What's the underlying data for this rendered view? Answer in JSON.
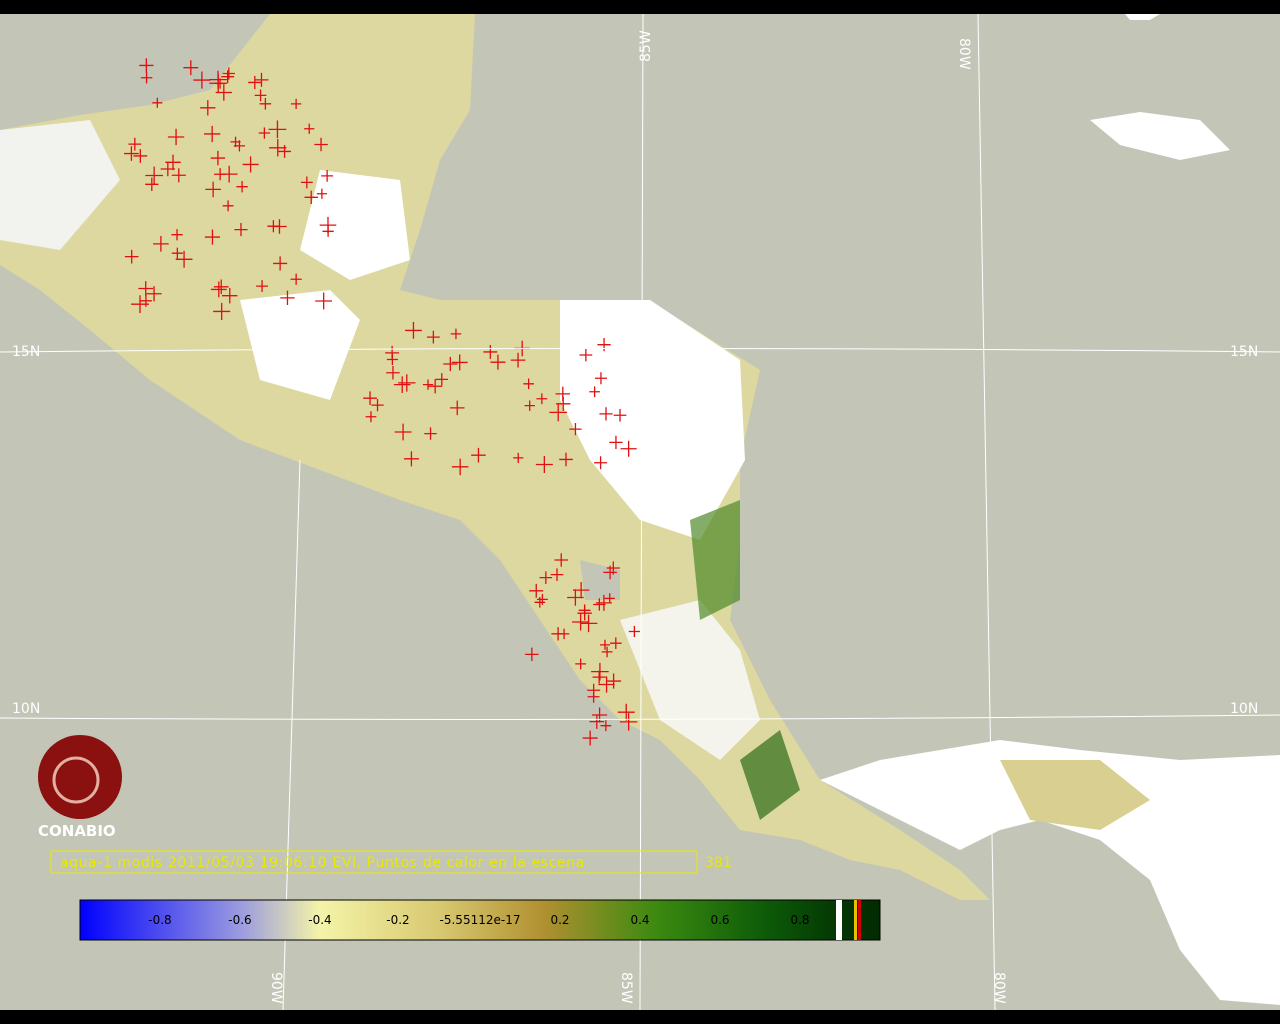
{
  "grid_labels": {
    "top": [
      "85W",
      "80W"
    ],
    "bottom": [
      "90W",
      "85W",
      "80W"
    ],
    "left": [
      "15N",
      "10N"
    ],
    "right": [
      "15N",
      "10N"
    ]
  },
  "logo": {
    "name": "CONABIO"
  },
  "caption": {
    "text": "aqua-1 modis 2011/05/03 19:06:10 EVI, Puntos de calor en la escena",
    "count": "381"
  },
  "colorbar": {
    "ticks": [
      "-0.8",
      "-0.6",
      "-0.4",
      "-0.2",
      "-5.55112e-17",
      "0.2",
      "0.4",
      "0.6",
      "0.8"
    ]
  }
}
